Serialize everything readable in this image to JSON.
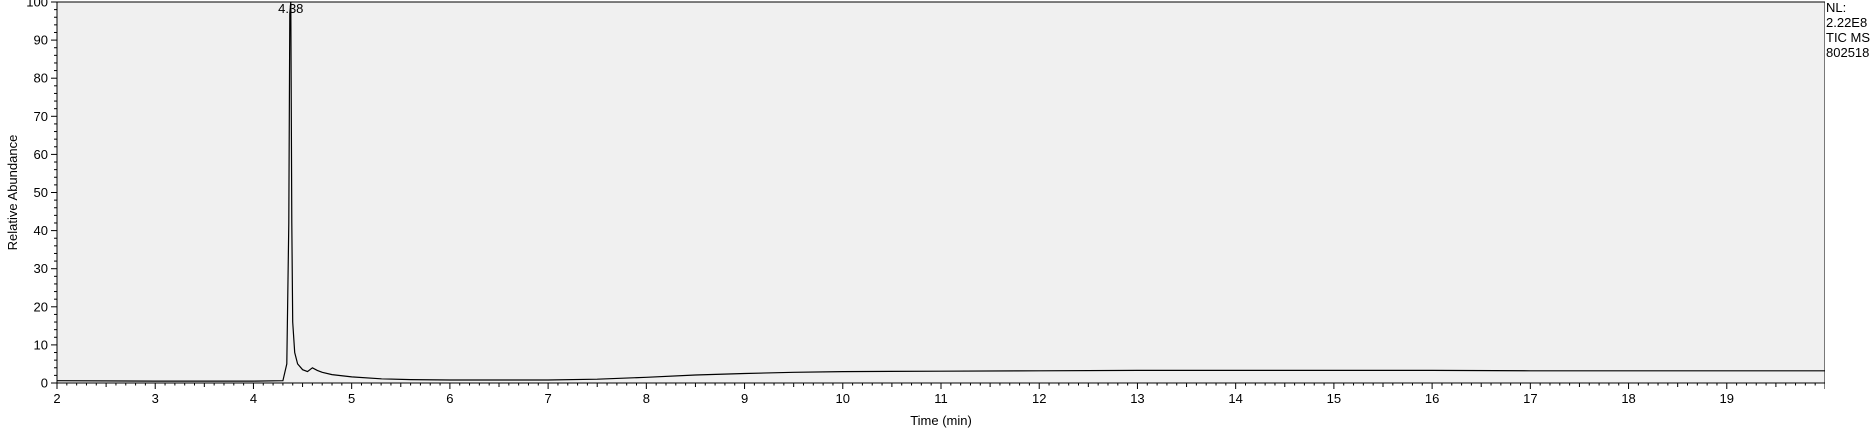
{
  "chart_data": {
    "type": "line",
    "xlabel": "Time (min)",
    "ylabel": "Relative Abundance",
    "xlim": [
      2,
      20
    ],
    "ylim": [
      0,
      100
    ],
    "xticks": [
      2,
      3,
      4,
      5,
      6,
      7,
      8,
      9,
      10,
      11,
      12,
      13,
      14,
      15,
      16,
      17,
      18,
      19
    ],
    "yticks": [
      0,
      10,
      20,
      30,
      40,
      50,
      60,
      70,
      80,
      90,
      100
    ],
    "background_color": "#f0f0f0",
    "line_color": "#000000",
    "peak_label": {
      "x": 4.38,
      "text": "4.38"
    },
    "series": [
      {
        "x": [
          2.0,
          3.0,
          4.0,
          4.3,
          4.34,
          4.36,
          4.37,
          4.38,
          4.39,
          4.4,
          4.42,
          4.45,
          4.5,
          4.55,
          4.6,
          4.65,
          4.7,
          4.8,
          5.0,
          5.3,
          5.6,
          6.0,
          6.5,
          7.0,
          7.5,
          8.0,
          8.5,
          9.0,
          9.5,
          10.0,
          11.0,
          12.0,
          13.0,
          14.0,
          15.0,
          16.0,
          17.0,
          18.0,
          19.0,
          20.0
        ],
        "y": [
          0.6,
          0.5,
          0.5,
          0.6,
          5.0,
          42.0,
          97.0,
          100.0,
          42.0,
          16.0,
          8.0,
          5.0,
          3.5,
          3.0,
          4.0,
          3.3,
          2.8,
          2.2,
          1.6,
          1.1,
          0.9,
          0.8,
          0.8,
          0.8,
          1.0,
          1.5,
          2.1,
          2.5,
          2.8,
          3.0,
          3.1,
          3.2,
          3.3,
          3.3,
          3.3,
          3.3,
          3.2,
          3.2,
          3.2,
          3.2
        ]
      }
    ]
  },
  "info": {
    "nl_label": "NL:",
    "nl_value": "2.22E8",
    "trace_label": "TIC  MS",
    "sample_id": "802518"
  }
}
